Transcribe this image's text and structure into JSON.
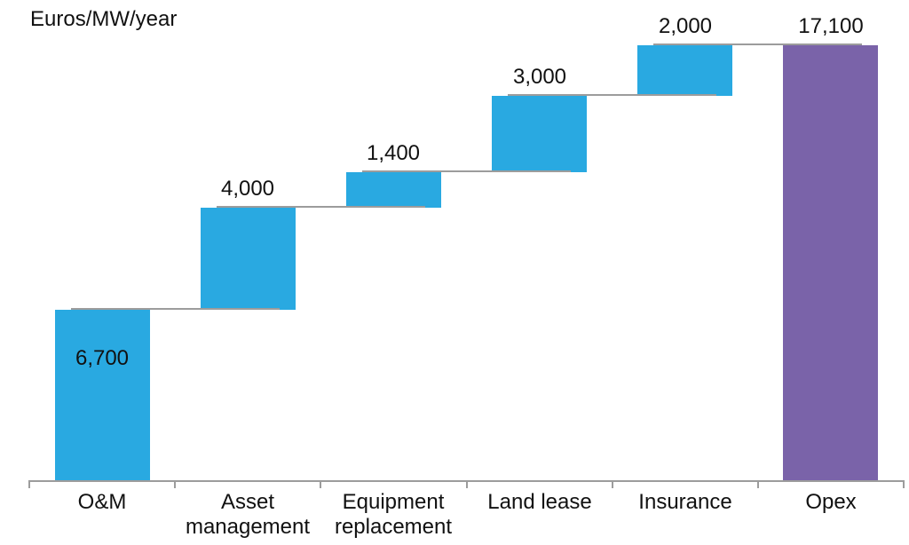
{
  "title": "Euros/MW/year",
  "chart_data": {
    "type": "bar",
    "subtype": "waterfall",
    "title": "",
    "ylabel": "Euros/MW/year",
    "xlabel": "",
    "categories": [
      "O&M",
      "Asset management",
      "Equipment replacement",
      "Land lease",
      "Insurance",
      "Opex"
    ],
    "values": [
      6700,
      4000,
      1400,
      3000,
      2000,
      17100
    ],
    "value_labels": [
      "6,700",
      "4,000",
      "1,400",
      "3,000",
      "2,000",
      "17,100"
    ],
    "roles": [
      "step",
      "step",
      "step",
      "step",
      "step",
      "total"
    ],
    "label_placement": [
      "inside",
      "above",
      "above",
      "above",
      "above",
      "above"
    ],
    "ylim": [
      0,
      17100
    ],
    "grid": false,
    "legend": "none",
    "axis_ticks": "category-boundaries",
    "colors": {
      "step": "#29A9E1",
      "total": "#7A63A9",
      "connector": "#9C9C9C",
      "axis": "#9C9C9C",
      "text": "#111111"
    }
  }
}
